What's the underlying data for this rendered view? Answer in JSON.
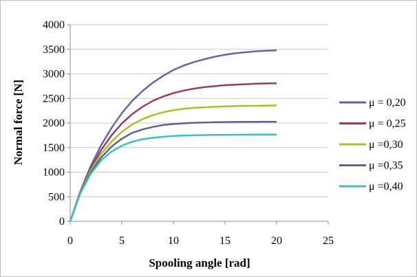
{
  "chart_data": {
    "type": "line",
    "title": "",
    "xlabel": "Spooling angle [rad]",
    "ylabel": "Normal force [N]",
    "xlim": [
      0,
      25
    ],
    "ylim": [
      0,
      4000
    ],
    "xticks": [
      0,
      5,
      10,
      15,
      20,
      25
    ],
    "yticks": [
      0,
      500,
      1000,
      1500,
      2000,
      2500,
      3000,
      3500,
      4000
    ],
    "xtick_labels": [
      "0",
      "5",
      "10",
      "15",
      "20",
      "25"
    ],
    "ytick_labels": [
      "0",
      "500",
      "1000",
      "1500",
      "2000",
      "2500",
      "3000",
      "3500",
      "4000"
    ],
    "grid": "horizontal",
    "legend_position": "right",
    "x": [
      0,
      1,
      2,
      3,
      4,
      5,
      6,
      7,
      8,
      9,
      10,
      11,
      12,
      13,
      14,
      15,
      16,
      17,
      18,
      19,
      20
    ],
    "series": [
      {
        "name": "μ = 0,20",
        "color": "#6166a8",
        "values": [
          0,
          620,
          1130,
          1550,
          1900,
          2200,
          2450,
          2650,
          2820,
          2960,
          3080,
          3170,
          3240,
          3300,
          3350,
          3390,
          3420,
          3440,
          3460,
          3470,
          3480
        ]
      },
      {
        "name": "μ = 0,25",
        "color": "#9b3a64",
        "values": [
          0,
          610,
          1080,
          1450,
          1750,
          1990,
          2180,
          2330,
          2450,
          2540,
          2610,
          2660,
          2700,
          2730,
          2750,
          2770,
          2780,
          2790,
          2800,
          2805,
          2810
        ]
      },
      {
        "name": "μ =0,30",
        "color": "#a5c31e",
        "values": [
          0,
          600,
          1040,
          1370,
          1620,
          1820,
          1970,
          2080,
          2160,
          2220,
          2260,
          2290,
          2310,
          2320,
          2330,
          2340,
          2345,
          2350,
          2350,
          2355,
          2360
        ]
      },
      {
        "name": "μ =0,35",
        "color": "#5e5da0",
        "values": [
          0,
          590,
          1000,
          1300,
          1520,
          1680,
          1800,
          1870,
          1920,
          1960,
          1980,
          1995,
          2005,
          2010,
          2015,
          2020,
          2022,
          2024,
          2025,
          2026,
          2027
        ]
      },
      {
        "name": "μ =0,40",
        "color": "#37c1c9",
        "values": [
          0,
          580,
          970,
          1240,
          1420,
          1540,
          1620,
          1670,
          1700,
          1720,
          1735,
          1745,
          1750,
          1755,
          1758,
          1760,
          1762,
          1764,
          1765,
          1766,
          1767
        ]
      }
    ]
  }
}
